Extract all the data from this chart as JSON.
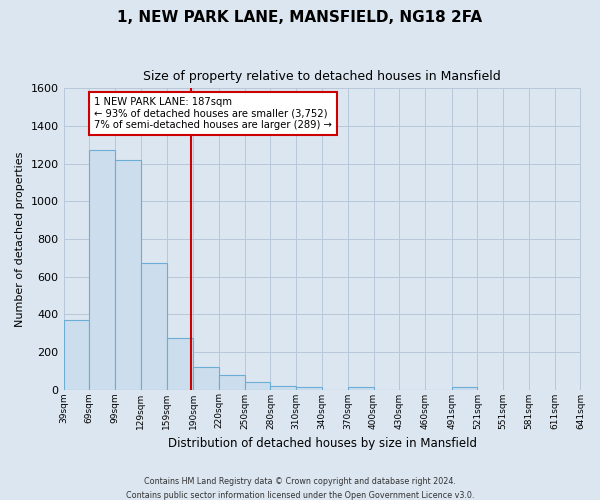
{
  "title": "1, NEW PARK LANE, MANSFIELD, NG18 2FA",
  "subtitle": "Size of property relative to detached houses in Mansfield",
  "xlabel": "Distribution of detached houses by size in Mansfield",
  "ylabel": "Number of detached properties",
  "bar_heights": [
    370,
    1270,
    1220,
    670,
    275,
    120,
    78,
    40,
    20,
    15,
    0,
    15,
    0,
    0,
    0,
    15
  ],
  "bin_edges": [
    39,
    69,
    99,
    129,
    159,
    190,
    220,
    250,
    280,
    310,
    340,
    370,
    400,
    430,
    460,
    491,
    521
  ],
  "tick_labels": [
    "39sqm",
    "69sqm",
    "99sqm",
    "129sqm",
    "159sqm",
    "190sqm",
    "220sqm",
    "250sqm",
    "280sqm",
    "310sqm",
    "340sqm",
    "370sqm",
    "400sqm",
    "430sqm",
    "460sqm",
    "491sqm",
    "521sqm",
    "551sqm",
    "581sqm",
    "611sqm",
    "641sqm"
  ],
  "all_ticks": [
    39,
    69,
    99,
    129,
    159,
    190,
    220,
    250,
    280,
    310,
    340,
    370,
    400,
    430,
    460,
    491,
    521,
    551,
    581,
    611,
    641
  ],
  "property_line_x": 187,
  "ylim": [
    0,
    1600
  ],
  "yticks": [
    0,
    200,
    400,
    600,
    800,
    1000,
    1200,
    1400,
    1600
  ],
  "bar_color": "#ccdded",
  "bar_edge_color": "#6aaed6",
  "line_color": "#cc0000",
  "annotation_line1": "1 NEW PARK LANE: 187sqm",
  "annotation_line2": "← 93% of detached houses are smaller (3,752)",
  "annotation_line3": "7% of semi-detached houses are larger (289) →",
  "annotation_box_color": "#ffffff",
  "annotation_box_edge": "#cc0000",
  "footer1": "Contains HM Land Registry data © Crown copyright and database right 2024.",
  "footer2": "Contains public sector information licensed under the Open Government Licence v3.0.",
  "background_color": "#dce6f0",
  "plot_background": "#dce6f0",
  "grid_color": "#b8c8d8",
  "title_fontsize": 11,
  "subtitle_fontsize": 9,
  "ylabel_fontsize": 8,
  "xlabel_fontsize": 8.5
}
